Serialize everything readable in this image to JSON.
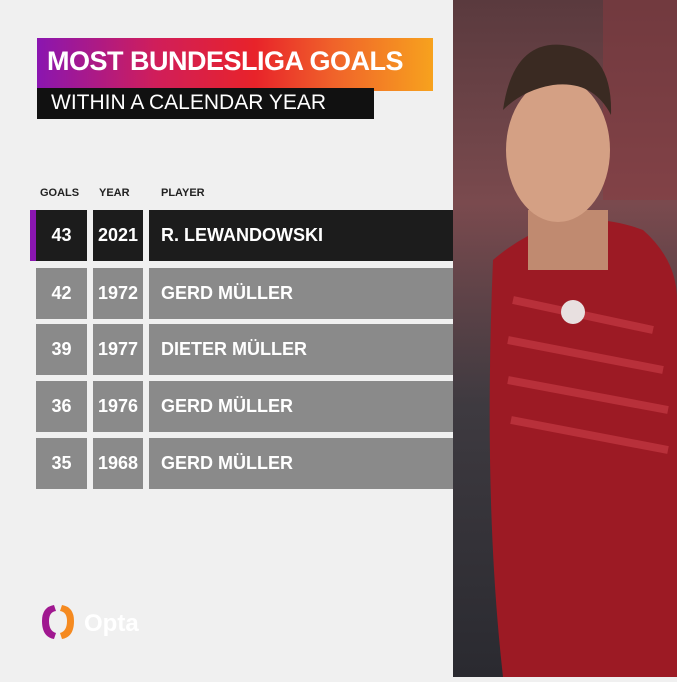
{
  "title": "MOST BUNDESLIGA GOALS",
  "subtitle": "WITHIN A CALENDAR YEAR",
  "columns": {
    "goals": "GOALS",
    "year": "YEAR",
    "player": "PLAYER"
  },
  "rows": [
    {
      "goals": "43",
      "year": "2021",
      "player": "R. LEWANDOWSKI"
    },
    {
      "goals": "42",
      "year": "1972",
      "player": "GERD MÜLLER"
    },
    {
      "goals": "39",
      "year": "1977",
      "player": "DIETER MÜLLER"
    },
    {
      "goals": "36",
      "year": "1976",
      "player": "GERD MÜLLER"
    },
    {
      "goals": "35",
      "year": "1968",
      "player": "GERD MÜLLER"
    }
  ],
  "logo": "Opta",
  "colors": {
    "highlight_row": "#1c1c1c",
    "row": "#8a8a8a",
    "accent": "#8a16b0"
  }
}
